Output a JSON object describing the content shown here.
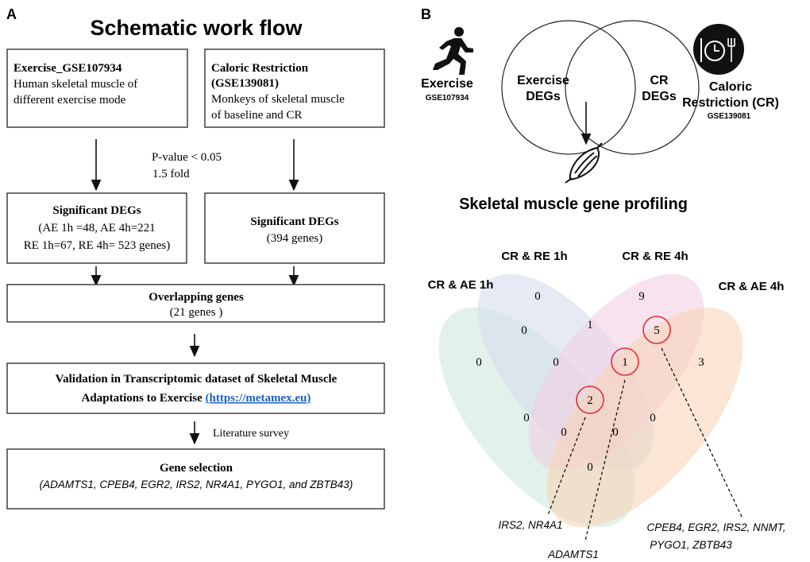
{
  "panel_a": {
    "letter": "A",
    "title": "Schematic work flow",
    "exercise_box": {
      "title": "Exercise_GSE107934",
      "line1": "Human skeletal muscle of",
      "line2": "different exercise mode"
    },
    "cr_box": {
      "title1": "Caloric Restriction",
      "title2": "(GSE139081)",
      "line1": "Monkeys of skeletal muscle",
      "line2": "of baseline  and CR"
    },
    "criteria": {
      "line1": "P-value  < 0.05",
      "line2": "1.5 fold"
    },
    "ex_degs_box": {
      "title": "Significant  DEGs",
      "line1": "(AE  1h =48, AE 4h=221",
      "line2": "RE 1h=67, RE 4h= 523 genes)"
    },
    "cr_degs_box": {
      "title": "Significant  DEGs",
      "line1": "(394 genes)"
    },
    "overlap_box": {
      "title": "Overlapping  genes",
      "line1": "(21 genes )"
    },
    "validation_box": {
      "line1": "Validation in Transcriptomic dataset of Skeletal Muscle",
      "line2_prefix": "Adaptations to Exercise ",
      "link": "(https://metamex.eu)"
    },
    "literature": "Literature survey",
    "gene_box": {
      "title": "Gene selection",
      "genes": "(ADAMTS1, CPEB4, EGR2, IRS2, NR4A1, PYGO1, and ZBTB43)"
    }
  },
  "panel_b": {
    "letter": "B",
    "exercise_label": "Exercise",
    "exercise_id": "GSE107934",
    "cr_label1": "Caloric",
    "cr_label2": "Restriction (CR)",
    "cr_id": "GSE139081",
    "icons": [
      "runner-icon",
      "plate-clock-cutlery-icon",
      "muscle-icon"
    ],
    "circle_left": {
      "line1": "Exercise",
      "line2": "DEGs"
    },
    "circle_right": {
      "line1": "CR",
      "line2": "DEGs"
    },
    "profiling_title": "Skeletal muscle gene profiling",
    "venn": {
      "sets": [
        {
          "label": "CR & AE 1h",
          "color": "#cfe9dc"
        },
        {
          "label": "CR & RE 1h",
          "color": "#d6dcec"
        },
        {
          "label": "CR & RE 4h",
          "color": "#f2cfe3"
        },
        {
          "label": "CR & AE 4h",
          "color": "#f9d3b8"
        }
      ],
      "counts": [
        "0",
        "9",
        "0",
        "1",
        "5",
        "0",
        "0",
        "1",
        "3",
        "2",
        "0",
        "0",
        "0",
        "0",
        "0"
      ],
      "highlight_color": "#e03030",
      "annotations": {
        "two": "IRS2, NR4A1",
        "one": "ADAMTS1",
        "five_line1": "CPEB4, EGR2, IRS2, NNMT,",
        "five_line2": "PYGO1, ZBTB43"
      }
    }
  }
}
